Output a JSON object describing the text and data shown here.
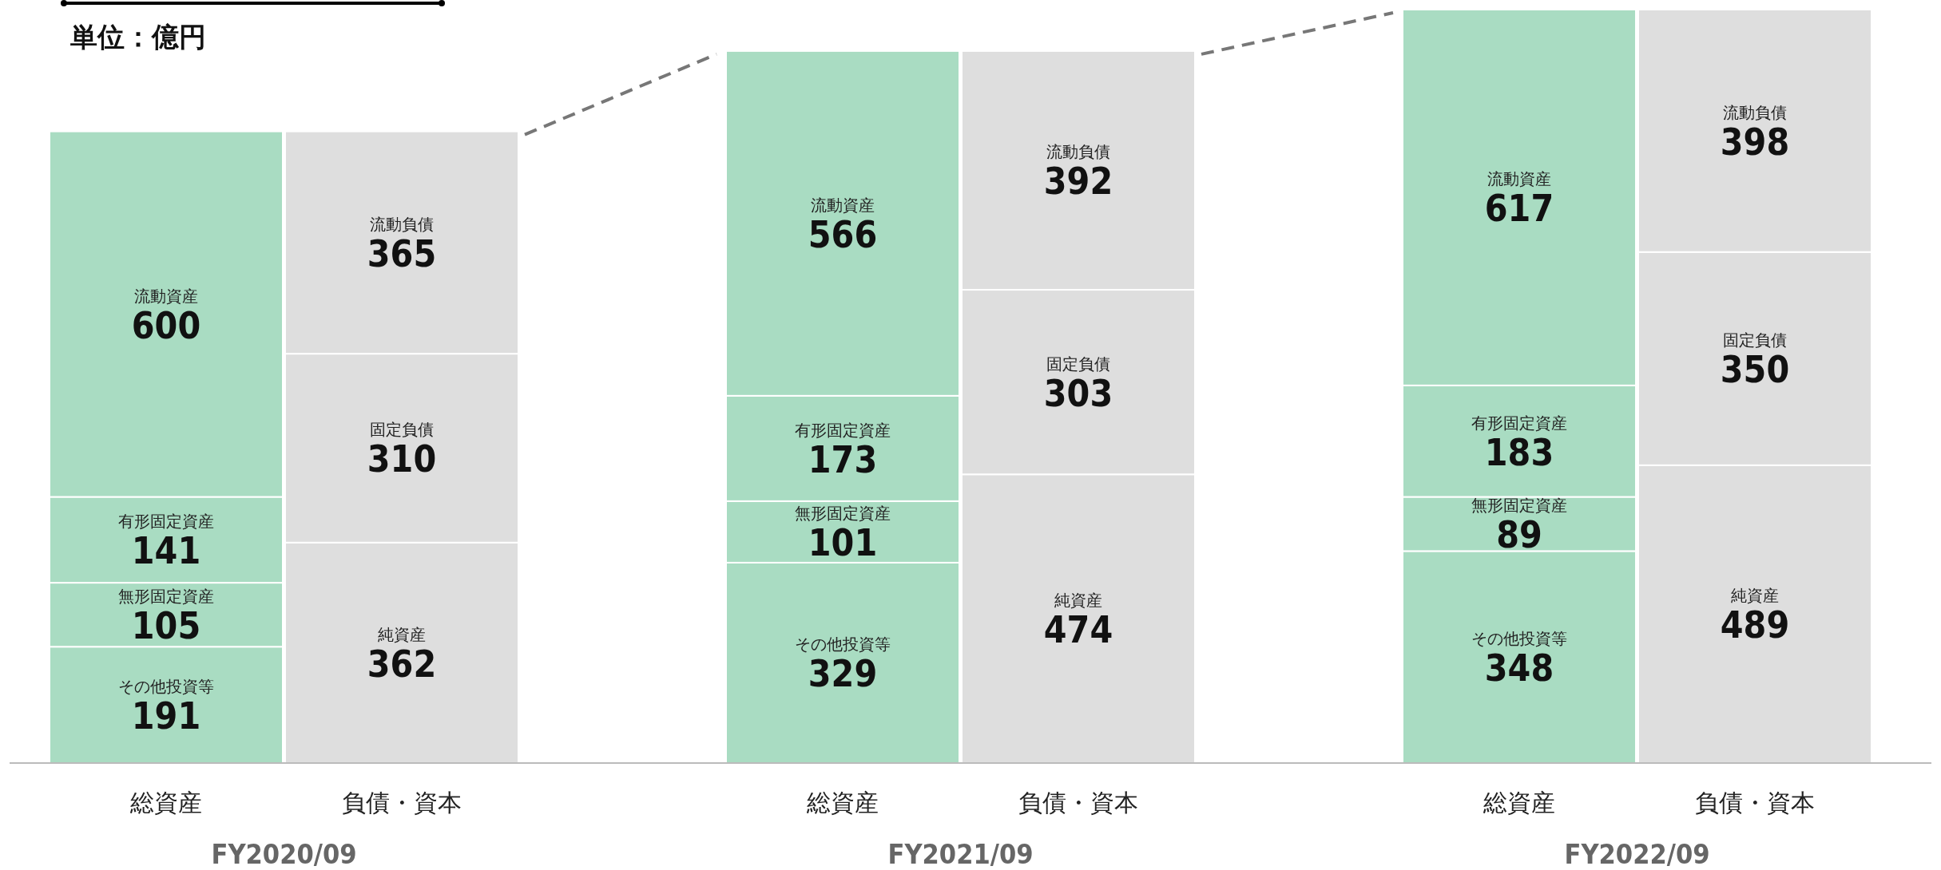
{
  "chart_data": {
    "type": "bar",
    "stacked": true,
    "data_labels": true,
    "legend": false,
    "grid": false,
    "categories": [
      "総資産",
      "負債・資本",
      "総資産",
      "負債・資本",
      "総資産",
      "負債・資本"
    ],
    "series": [
      {
        "name": "その他投資等",
        "color": "#a9dcc2",
        "values": [
          191,
          null,
          329,
          null,
          348,
          null
        ]
      },
      {
        "name": "無形固定資産",
        "color": "#a9dcc2",
        "values": [
          105,
          null,
          101,
          null,
          89,
          null
        ]
      },
      {
        "name": "有形固定資産",
        "color": "#a9dcc2",
        "values": [
          141,
          null,
          173,
          null,
          183,
          null
        ]
      },
      {
        "name": "流動資産",
        "color": "#a9dcc2",
        "values": [
          600,
          null,
          566,
          null,
          617,
          null
        ]
      },
      {
        "name": "純資産",
        "color": "#dedede",
        "values": [
          null,
          362,
          null,
          474,
          null,
          489
        ]
      },
      {
        "name": "固定負債",
        "color": "#dedede",
        "values": [
          null,
          310,
          null,
          303,
          null,
          350
        ]
      },
      {
        "name": "流動負債",
        "color": "#dedede",
        "values": [
          null,
          365,
          null,
          392,
          null,
          398
        ]
      }
    ],
    "annotations": [
      "単位：億円",
      "FY2020/09",
      "FY2021/09",
      "FY2022/09"
    ]
  }
}
